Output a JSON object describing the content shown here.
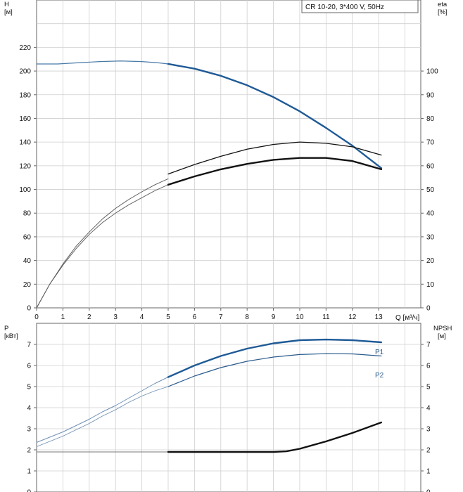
{
  "chart_data": [
    {
      "type": "line",
      "title": "CR 10-20, 3*400 V, 50Hz",
      "xlabel": "Q [м³/ч]",
      "ylabel": "H\n[м]",
      "ylabel_right": "eta\n[%]",
      "xlim": [
        0,
        14.6
      ],
      "ylim": [
        0,
        260
      ],
      "ylim_right": [
        0,
        130
      ],
      "x_ticks": [
        0,
        1,
        2,
        3,
        4,
        5,
        6,
        7,
        8,
        9,
        10,
        11,
        12,
        13
      ],
      "y_ticks": [
        0,
        20,
        40,
        60,
        80,
        100,
        120,
        140,
        160,
        180,
        200,
        220
      ],
      "y_ticks_right": [
        0,
        10,
        20,
        30,
        40,
        50,
        60,
        70,
        80,
        90,
        100
      ],
      "grid": true,
      "series": [
        {
          "axis": "left",
          "color": "#4a7aa8",
          "width": 1.2,
          "x": [
            0,
            0.8,
            1.6,
            2.4,
            3.2,
            4.0,
            4.6,
            5.0
          ],
          "y": [
            206,
            206,
            207,
            208,
            208.5,
            208,
            207,
            206
          ]
        },
        {
          "axis": "left",
          "color": "#1f5a96",
          "width": 2.4,
          "x": [
            5.0,
            6.0,
            7.0,
            8.0,
            9.0,
            10.0,
            11.0,
            12.0,
            13.1
          ],
          "y": [
            206,
            202,
            196,
            188,
            178,
            166,
            152,
            137,
            118
          ]
        },
        {
          "axis": "right",
          "color": "#666666",
          "width": 1.0,
          "x": [
            0,
            0.5,
            1.0,
            1.5,
            2.0,
            2.5,
            3.0,
            3.5,
            4.0,
            4.5,
            5.0
          ],
          "y": [
            0,
            10,
            18,
            25,
            31,
            36,
            40,
            43.5,
            46.5,
            49.5,
            52
          ]
        },
        {
          "axis": "right",
          "color": "#111111",
          "width": 2.4,
          "x": [
            5.0,
            6.0,
            7.0,
            8.0,
            9.0,
            10.0,
            11.0,
            12.0,
            13.1
          ],
          "y": [
            52,
            55.5,
            58.5,
            60.8,
            62.5,
            63.3,
            63.3,
            62,
            58.5
          ]
        },
        {
          "axis": "left",
          "color": "#555555",
          "width": 0.9,
          "x": [
            0,
            0.5,
            1.0,
            1.5,
            2.0,
            2.5,
            3.0,
            3.5,
            4.0,
            4.5,
            5.0
          ],
          "y": [
            0,
            20,
            37,
            52,
            64,
            75,
            84,
            91.5,
            98,
            104,
            109
          ]
        },
        {
          "axis": "left",
          "color": "#111111",
          "width": 1.3,
          "x": [
            5.0,
            6.0,
            7.0,
            8.0,
            9.0,
            10.0,
            11.0,
            12.0,
            13.1
          ],
          "y": [
            113,
            121,
            128,
            134,
            138,
            140,
            139,
            136,
            129
          ]
        }
      ]
    },
    {
      "type": "line",
      "title": "",
      "xlabel": "",
      "ylabel": "P\n[кВт]",
      "ylabel_right": "NPSH\n[м]",
      "xlim": [
        0,
        14.6
      ],
      "ylim": [
        0,
        8
      ],
      "ylim_right": [
        0,
        8
      ],
      "y_ticks": [
        0,
        1,
        2,
        3,
        4,
        5,
        6,
        7
      ],
      "y_ticks_right": [
        0,
        1,
        2,
        3,
        4,
        5,
        6,
        7
      ],
      "grid": true,
      "series": [
        {
          "name": "P1",
          "color": "#6f90b5",
          "width": 1.0,
          "x": [
            0,
            0.5,
            1.0,
            1.5,
            2.0,
            2.5,
            3.0,
            3.5,
            4.0,
            4.5,
            5.0
          ],
          "y": [
            2.35,
            2.6,
            2.85,
            3.15,
            3.45,
            3.8,
            4.1,
            4.45,
            4.8,
            5.15,
            5.45
          ]
        },
        {
          "color": "#1f5a96",
          "width": 2.4,
          "x": [
            5.0,
            6.0,
            7.0,
            8.0,
            9.0,
            10.0,
            11.0,
            12.0,
            13.1
          ],
          "y": [
            5.45,
            6.0,
            6.45,
            6.8,
            7.05,
            7.2,
            7.23,
            7.2,
            7.1
          ]
        },
        {
          "name": "P2",
          "color": "#6f90b5",
          "width": 0.9,
          "x": [
            0,
            0.5,
            1.0,
            1.5,
            2.0,
            2.5,
            3.0,
            3.5,
            4.0,
            4.5,
            5.0
          ],
          "y": [
            2.15,
            2.4,
            2.65,
            2.95,
            3.25,
            3.6,
            3.9,
            4.25,
            4.55,
            4.8,
            5.0
          ]
        },
        {
          "color": "#2a5b8c",
          "width": 1.2,
          "x": [
            5.0,
            6.0,
            7.0,
            8.0,
            9.0,
            10.0,
            11.0,
            12.0,
            13.1
          ],
          "y": [
            5.0,
            5.5,
            5.9,
            6.2,
            6.4,
            6.52,
            6.56,
            6.55,
            6.45
          ]
        },
        {
          "axis": "right",
          "color": "#777777",
          "width": 0.9,
          "x": [
            0,
            1,
            2,
            3,
            4,
            5
          ],
          "y": [
            1.9,
            1.9,
            1.9,
            1.9,
            1.9,
            1.9
          ]
        },
        {
          "axis": "right",
          "color": "#111111",
          "width": 2.4,
          "x": [
            5.0,
            6.0,
            7.0,
            8.0,
            9.0,
            9.5,
            10.0,
            11.0,
            12.0,
            13.1
          ],
          "y": [
            1.9,
            1.9,
            1.9,
            1.9,
            1.9,
            1.93,
            2.05,
            2.4,
            2.8,
            3.3
          ]
        }
      ]
    }
  ]
}
